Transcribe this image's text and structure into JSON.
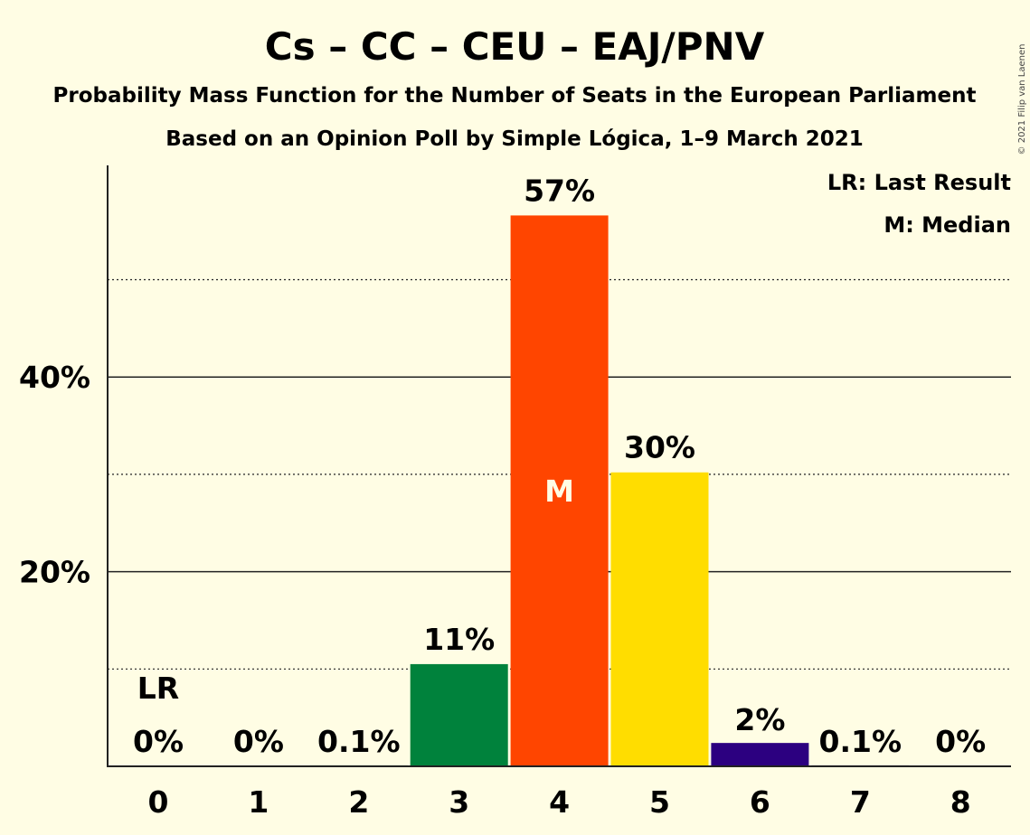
{
  "chart_data": {
    "type": "bar",
    "title": "Cs – CC – CEU – EAJ/PNV",
    "subtitle": "Probability Mass Function for the Number of Seats in the European Parliament",
    "subtitle2": "Based on an Opinion Poll by Simple Lógica, 1–9 March 2021",
    "copyright": "© 2021 Filip van Laenen",
    "categories": [
      "0",
      "1",
      "2",
      "3",
      "4",
      "5",
      "6",
      "7",
      "8"
    ],
    "values": [
      0,
      0,
      0.1,
      10.5,
      56.6,
      30.2,
      2.4,
      0.1,
      0
    ],
    "labels": [
      "0%",
      "0%",
      "0.1%",
      "11%",
      "57%",
      "30%",
      "2%",
      "0.1%",
      "0%"
    ],
    "colors": [
      "#00823c",
      "#00823c",
      "#00823c",
      "#00823c",
      "#ff4500",
      "#ffdd00",
      "#2c0080",
      "#2c0080",
      "#2c0080"
    ],
    "yticks": [
      {
        "value": 20,
        "label": "20%"
      },
      {
        "value": 40,
        "label": "40%"
      }
    ],
    "minor_gridlines": [
      10,
      30,
      50
    ],
    "ylim": [
      0,
      62
    ],
    "last_result_index": 0,
    "last_result_marker": "LR",
    "median_index": 4,
    "median_marker": "M",
    "legend": [
      "LR: Last Result",
      "M: Median"
    ],
    "legend_position": "top-right",
    "grid": true
  }
}
